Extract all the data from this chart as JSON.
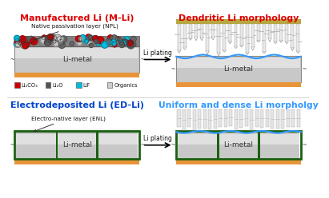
{
  "title_mli": "Manufactured Li (M-Li)",
  "title_edli": "Electrodeposited Li (ED-Li)",
  "title_dendritic": "Dendritic Li morphology",
  "title_uniform": "Uniform and dense Li morpholgy",
  "label_npl": "Native passivation layer (NPL)",
  "label_enl": "Electro-native layer (ENL)",
  "label_li_plating": "Li plating",
  "label_li_metal": "Li-metal",
  "legend_labels": [
    "Li₂CO₃",
    "Li₂O",
    "LiF",
    "Organics"
  ],
  "legend_colors": [
    "#cc0000",
    "#555555",
    "#00bbdd",
    "#cccccc"
  ],
  "color_mli_red": "#cc0000",
  "color_mli_gray": "#666666",
  "color_mli_cyan": "#00bbdd",
  "color_mli_lightgray": "#cccccc",
  "color_orange": "#e8953a",
  "color_limetal_light": "#e0e0e0",
  "color_limetal_mid": "#c8c8c8",
  "color_limetal_dark": "#999999",
  "color_green_dark": "#1a6010",
  "color_blue_outline": "#3399ff",
  "color_title_red": "#dd0000",
  "color_title_blue": "#0044cc",
  "bg_color": "#ffffff"
}
